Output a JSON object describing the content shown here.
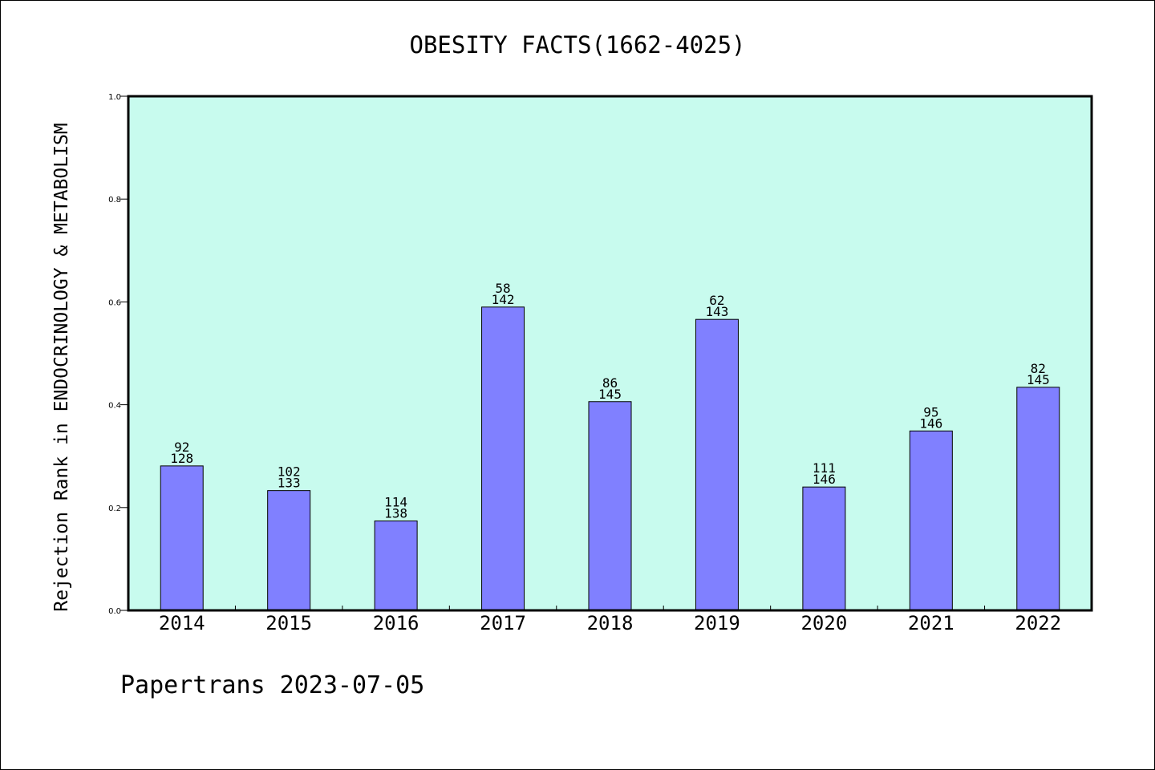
{
  "chart_data": {
    "type": "bar",
    "title": "OBESITY FACTS(1662-4025)",
    "ylabel": "Rejection Rank in ENDOCRINOLOGY & METABOLISM",
    "xlabel": "",
    "ylim": [
      0,
      1.0
    ],
    "yticks": [
      "0.0",
      "0.2",
      "0.4",
      "0.6",
      "0.8",
      "1.0"
    ],
    "yticks_values": [
      0,
      0.2,
      0.4,
      0.6,
      0.8,
      1.0
    ],
    "categories": [
      "2014",
      "2015",
      "2016",
      "2017",
      "2018",
      "2019",
      "2020",
      "2021",
      "2022"
    ],
    "values": [
      0.281,
      0.233,
      0.174,
      0.59,
      0.406,
      0.566,
      0.24,
      0.349,
      0.434
    ],
    "labels_top": [
      "92",
      "102",
      "114",
      "58",
      "86",
      "62",
      "111",
      "95",
      "82"
    ],
    "labels_bottom": [
      "128",
      "133",
      "138",
      "142",
      "145",
      "143",
      "146",
      "146",
      "145"
    ],
    "grid": false,
    "colors": {
      "plot_bg": "#c8fbee",
      "bar": "#8080ff",
      "bar_edge": "#000000",
      "axes": "#000000"
    }
  },
  "footer": {
    "caption": "Papertrans 2023-07-05"
  }
}
